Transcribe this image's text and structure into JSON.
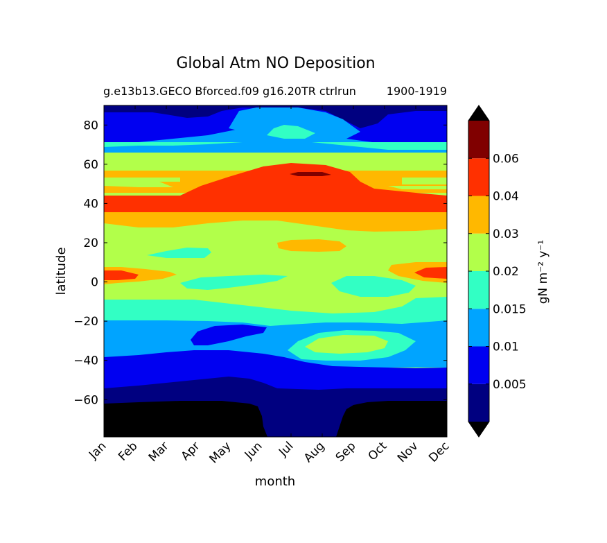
{
  "chart_data": {
    "type": "heatmap",
    "title": "Global Atm NO Deposition",
    "subtitle_left": "g.e13b13.GECO Bforced.f09 g16.20TR ctrlrun",
    "subtitle_right": "1900-1919",
    "xlabel": "month",
    "ylabel": "latitude",
    "x_ticks": [
      "Jan",
      "Feb",
      "Mar",
      "Apr",
      "May",
      "Jun",
      "Jul",
      "Aug",
      "Sep",
      "Oct",
      "Nov",
      "Dec"
    ],
    "y_ticks": [
      80,
      60,
      40,
      20,
      0,
      -20,
      -40,
      -60
    ],
    "y_tick_labels": [
      "80",
      "60",
      "40",
      "20",
      "0",
      "−20",
      "−40",
      "−60"
    ],
    "ylim": [
      -79,
      90
    ],
    "colorbar": {
      "label": "gN m⁻² y⁻¹",
      "levels": [
        0.0,
        0.005,
        0.01,
        0.015,
        0.02,
        0.03,
        0.04,
        0.06,
        0.07
      ],
      "tick_labels": [
        "0.005",
        "0.01",
        "0.015",
        "0.02",
        "0.03",
        "0.04",
        "0.06"
      ],
      "colors": [
        "#000080",
        "#0000f1",
        "#00a4ff",
        "#32ffc4",
        "#b2ff4a",
        "#ffb800",
        "#ff3000",
        "#800000"
      ],
      "under_color": "#000000",
      "over_color": "#000000",
      "extend": "both"
    },
    "latitude_band_profile": [
      {
        "lat_range": [
          85,
          90
        ],
        "level": 0.003,
        "note": "deep blue polar north"
      },
      {
        "lat_range": [
          70,
          85
        ],
        "level": 0.007,
        "note": "blue, wider in Jan and Nov-Dec; light blue Jun-Aug"
      },
      {
        "lat_range": [
          63,
          70
        ],
        "level": 0.012,
        "note": "light blue to cyan"
      },
      {
        "lat_range": [
          55,
          63
        ],
        "level": 0.025,
        "note": "green/orange mix"
      },
      {
        "lat_range": [
          45,
          55
        ],
        "level": 0.035,
        "note": "orange, red peak May-Sep with dark red at 55N Jul-Aug"
      },
      {
        "lat_range": [
          32,
          45
        ],
        "level": 0.045,
        "note": "red maximum band"
      },
      {
        "lat_range": [
          26,
          32
        ],
        "level": 0.035,
        "note": "orange"
      },
      {
        "lat_range": [
          10,
          26
        ],
        "level": 0.025,
        "note": "green, orange patch 18-20N Jul-Aug"
      },
      {
        "lat_range": [
          -10,
          10
        ],
        "level": 0.02,
        "note": "green with cyan patches; red/orange peaks at 2N in Jan and Dec"
      },
      {
        "lat_range": [
          -20,
          -10
        ],
        "level": 0.017,
        "note": "cyan"
      },
      {
        "lat_range": [
          -35,
          -20
        ],
        "level": 0.012,
        "note": "light blue, blue patch May-Jul, cyan/green patch Sep-Oct"
      },
      {
        "lat_range": [
          -45,
          -35
        ],
        "level": 0.008,
        "note": "blue"
      },
      {
        "lat_range": [
          -62,
          -45
        ],
        "level": 0.006,
        "note": "blue to deep blue"
      },
      {
        "lat_range": [
          -79,
          -62
        ],
        "level": 0.0,
        "note": "black (below 0) Jan-Jun and Sep-Dec, deep blue Jul-Aug"
      }
    ]
  }
}
